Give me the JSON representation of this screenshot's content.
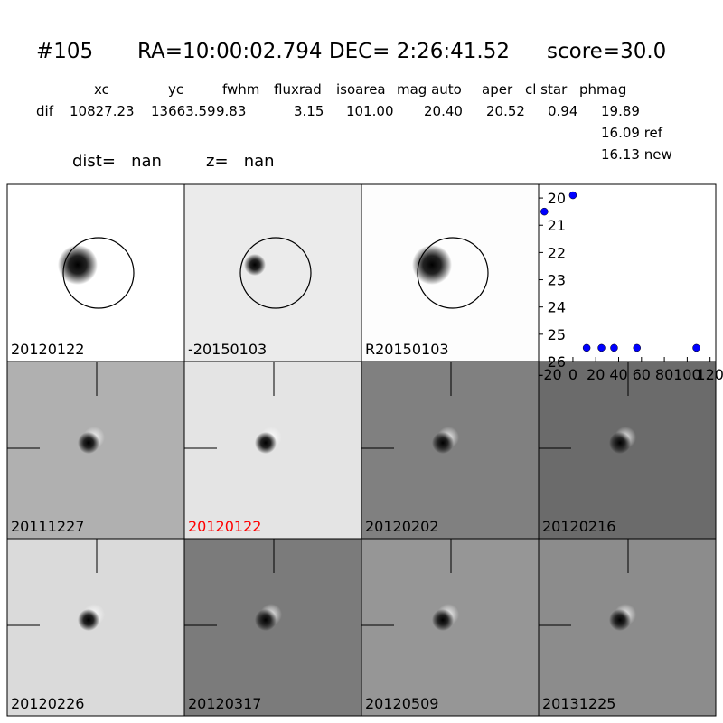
{
  "header": {
    "id": "#105",
    "coords": "RA=10:00:02.794 DEC= 2:26:41.52",
    "score": "score=30.0"
  },
  "table": {
    "columns": [
      "xc",
      "yc",
      "fwhm",
      "fluxrad",
      "isoarea",
      "mag auto",
      "aper",
      "cl star",
      "phmag"
    ],
    "rows": [
      [
        "dif",
        "10827.23",
        "13663.59",
        "9.83",
        "3.15",
        "101.00",
        "20.40",
        "20.52",
        "0.94",
        "19.89"
      ]
    ],
    "extra": [
      "16.09 ref",
      "16.13 new"
    ]
  },
  "dist": "dist=   nan",
  "z": "z=   nan",
  "panels": [
    {
      "label": "20120122"
    },
    {
      "label": "-20150103"
    },
    {
      "label": "R20150103"
    },
    {
      "label": "20111227"
    },
    {
      "label": "20120122",
      "color": "#ff0000"
    },
    {
      "label": "20120202"
    },
    {
      "label": "20120216"
    },
    {
      "label": "20120226"
    },
    {
      "label": "20120317"
    },
    {
      "label": "20120509"
    },
    {
      "label": "20131225"
    }
  ],
  "chart_data": {
    "type": "scatter",
    "x": [
      -25,
      0,
      12,
      25,
      36,
      56,
      108
    ],
    "series": [
      {
        "color": "#0000ff",
        "values": [
          20.5,
          19.9,
          25.5,
          25.5,
          25.5,
          25.5,
          25.5
        ]
      }
    ],
    "xlim": [
      -30,
      125
    ],
    "ylim": [
      19.5,
      26
    ],
    "xticks": [
      -20,
      0,
      20,
      40,
      60,
      80,
      100,
      120
    ],
    "yticks": [
      20,
      21,
      22,
      23,
      24,
      25,
      26
    ],
    "y_inverted": true
  }
}
